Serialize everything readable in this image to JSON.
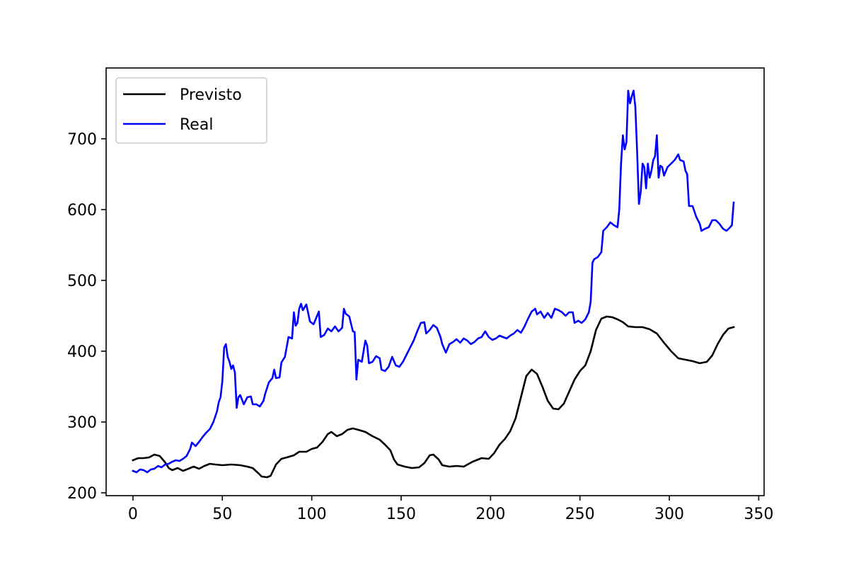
{
  "chart_data": {
    "type": "line",
    "title": "",
    "xlabel": "",
    "ylabel": "",
    "xlim": [
      -15,
      353
    ],
    "ylim": [
      196,
      800
    ],
    "xticks": [
      0,
      50,
      100,
      150,
      200,
      250,
      300,
      350
    ],
    "yticks": [
      200,
      300,
      400,
      500,
      600,
      700
    ],
    "xtick_labels": [
      "0",
      "50",
      "100",
      "150",
      "200",
      "250",
      "300",
      "350"
    ],
    "ytick_labels": [
      "200",
      "300",
      "400",
      "500",
      "600",
      "700"
    ],
    "grid": false,
    "legend_position": "top-left",
    "series": [
      {
        "name": "Previsto",
        "color": "#000000",
        "points": [
          [
            0,
            246
          ],
          [
            3,
            249
          ],
          [
            6,
            249
          ],
          [
            9,
            250
          ],
          [
            12,
            254
          ],
          [
            15,
            252
          ],
          [
            18,
            243
          ],
          [
            20,
            235
          ],
          [
            22,
            232
          ],
          [
            25,
            235
          ],
          [
            28,
            231
          ],
          [
            31,
            234
          ],
          [
            34,
            237
          ],
          [
            37,
            234
          ],
          [
            40,
            238
          ],
          [
            43,
            241
          ],
          [
            46,
            240
          ],
          [
            50,
            239
          ],
          [
            55,
            240
          ],
          [
            60,
            239
          ],
          [
            64,
            237
          ],
          [
            67,
            235
          ],
          [
            70,
            228
          ],
          [
            72,
            223
          ],
          [
            75,
            222
          ],
          [
            77,
            224
          ],
          [
            80,
            240
          ],
          [
            83,
            248
          ],
          [
            86,
            250
          ],
          [
            90,
            253
          ],
          [
            93,
            258
          ],
          [
            97,
            258
          ],
          [
            100,
            262
          ],
          [
            103,
            264
          ],
          [
            106,
            272
          ],
          [
            109,
            283
          ],
          [
            111,
            286
          ],
          [
            114,
            280
          ],
          [
            117,
            283
          ],
          [
            120,
            289
          ],
          [
            123,
            291
          ],
          [
            126,
            289
          ],
          [
            130,
            286
          ],
          [
            134,
            280
          ],
          [
            138,
            275
          ],
          [
            141,
            268
          ],
          [
            144,
            260
          ],
          [
            146,
            247
          ],
          [
            148,
            240
          ],
          [
            152,
            237
          ],
          [
            156,
            235
          ],
          [
            160,
            236
          ],
          [
            163,
            242
          ],
          [
            166,
            253
          ],
          [
            168,
            254
          ],
          [
            171,
            247
          ],
          [
            173,
            239
          ],
          [
            177,
            237
          ],
          [
            181,
            238
          ],
          [
            185,
            237
          ],
          [
            190,
            244
          ],
          [
            195,
            249
          ],
          [
            199,
            248
          ],
          [
            202,
            256
          ],
          [
            205,
            268
          ],
          [
            208,
            276
          ],
          [
            211,
            287
          ],
          [
            214,
            305
          ],
          [
            217,
            335
          ],
          [
            220,
            365
          ],
          [
            223,
            374
          ],
          [
            226,
            368
          ],
          [
            229,
            350
          ],
          [
            232,
            330
          ],
          [
            235,
            319
          ],
          [
            238,
            318
          ],
          [
            241,
            326
          ],
          [
            244,
            343
          ],
          [
            247,
            360
          ],
          [
            250,
            372
          ],
          [
            253,
            380
          ],
          [
            256,
            400
          ],
          [
            259,
            430
          ],
          [
            262,
            446
          ],
          [
            265,
            449
          ],
          [
            268,
            448
          ],
          [
            271,
            445
          ],
          [
            274,
            441
          ],
          [
            277,
            435
          ],
          [
            281,
            434
          ],
          [
            285,
            434
          ],
          [
            289,
            431
          ],
          [
            293,
            425
          ],
          [
            297,
            412
          ],
          [
            301,
            400
          ],
          [
            305,
            390
          ],
          [
            309,
            388
          ],
          [
            313,
            386
          ],
          [
            317,
            383
          ],
          [
            321,
            385
          ],
          [
            324,
            394
          ],
          [
            327,
            410
          ],
          [
            330,
            423
          ],
          [
            333,
            432
          ],
          [
            336,
            434
          ]
        ]
      },
      {
        "name": "Real",
        "color": "#0000ff",
        "points": [
          [
            0,
            231
          ],
          [
            2,
            229
          ],
          [
            4,
            233
          ],
          [
            6,
            232
          ],
          [
            8,
            229
          ],
          [
            10,
            233
          ],
          [
            12,
            234
          ],
          [
            14,
            238
          ],
          [
            16,
            236
          ],
          [
            18,
            240
          ],
          [
            20,
            241
          ],
          [
            22,
            244
          ],
          [
            24,
            246
          ],
          [
            26,
            245
          ],
          [
            28,
            248
          ],
          [
            30,
            252
          ],
          [
            32,
            262
          ],
          [
            33,
            271
          ],
          [
            35,
            266
          ],
          [
            37,
            272
          ],
          [
            39,
            279
          ],
          [
            41,
            285
          ],
          [
            43,
            290
          ],
          [
            45,
            300
          ],
          [
            47,
            315
          ],
          [
            48,
            328
          ],
          [
            49,
            335
          ],
          [
            50,
            358
          ],
          [
            51,
            405
          ],
          [
            52,
            410
          ],
          [
            53,
            392
          ],
          [
            54,
            385
          ],
          [
            55,
            375
          ],
          [
            56,
            380
          ],
          [
            57,
            370
          ],
          [
            58,
            320
          ],
          [
            59,
            335
          ],
          [
            60,
            338
          ],
          [
            62,
            325
          ],
          [
            64,
            335
          ],
          [
            66,
            336
          ],
          [
            67,
            325
          ],
          [
            69,
            325
          ],
          [
            71,
            322
          ],
          [
            73,
            330
          ],
          [
            74,
            340
          ],
          [
            76,
            356
          ],
          [
            78,
            362
          ],
          [
            79,
            374
          ],
          [
            80,
            362
          ],
          [
            82,
            363
          ],
          [
            83,
            384
          ],
          [
            85,
            392
          ],
          [
            87,
            420
          ],
          [
            89,
            418
          ],
          [
            90,
            455
          ],
          [
            91,
            436
          ],
          [
            92,
            440
          ],
          [
            93,
            460
          ],
          [
            94,
            467
          ],
          [
            95,
            458
          ],
          [
            97,
            466
          ],
          [
            99,
            442
          ],
          [
            101,
            438
          ],
          [
            103,
            450
          ],
          [
            104,
            456
          ],
          [
            105,
            420
          ],
          [
            107,
            423
          ],
          [
            109,
            432
          ],
          [
            111,
            428
          ],
          [
            113,
            435
          ],
          [
            115,
            428
          ],
          [
            117,
            433
          ],
          [
            118,
            460
          ],
          [
            119,
            453
          ],
          [
            121,
            449
          ],
          [
            123,
            428
          ],
          [
            124,
            427
          ],
          [
            125,
            360
          ],
          [
            126,
            388
          ],
          [
            128,
            385
          ],
          [
            130,
            415
          ],
          [
            131,
            408
          ],
          [
            132,
            383
          ],
          [
            134,
            385
          ],
          [
            136,
            393
          ],
          [
            138,
            390
          ],
          [
            139,
            374
          ],
          [
            141,
            372
          ],
          [
            143,
            378
          ],
          [
            145,
            392
          ],
          [
            147,
            380
          ],
          [
            149,
            378
          ],
          [
            151,
            385
          ],
          [
            153,
            395
          ],
          [
            155,
            405
          ],
          [
            157,
            415
          ],
          [
            159,
            428
          ],
          [
            161,
            440
          ],
          [
            163,
            441
          ],
          [
            164,
            425
          ],
          [
            166,
            430
          ],
          [
            168,
            437
          ],
          [
            170,
            433
          ],
          [
            172,
            420
          ],
          [
            173,
            410
          ],
          [
            175,
            398
          ],
          [
            177,
            410
          ],
          [
            179,
            413
          ],
          [
            181,
            417
          ],
          [
            183,
            412
          ],
          [
            185,
            418
          ],
          [
            187,
            415
          ],
          [
            189,
            410
          ],
          [
            191,
            413
          ],
          [
            193,
            418
          ],
          [
            195,
            420
          ],
          [
            197,
            428
          ],
          [
            199,
            420
          ],
          [
            201,
            416
          ],
          [
            203,
            418
          ],
          [
            205,
            422
          ],
          [
            207,
            420
          ],
          [
            209,
            418
          ],
          [
            211,
            422
          ],
          [
            213,
            425
          ],
          [
            215,
            430
          ],
          [
            217,
            426
          ],
          [
            219,
            435
          ],
          [
            221,
            446
          ],
          [
            223,
            456
          ],
          [
            225,
            460
          ],
          [
            226,
            452
          ],
          [
            228,
            456
          ],
          [
            230,
            447
          ],
          [
            232,
            454
          ],
          [
            234,
            447
          ],
          [
            236,
            460
          ],
          [
            238,
            458
          ],
          [
            240,
            455
          ],
          [
            242,
            450
          ],
          [
            244,
            455
          ],
          [
            246,
            455
          ],
          [
            247,
            440
          ],
          [
            249,
            443
          ],
          [
            251,
            440
          ],
          [
            253,
            445
          ],
          [
            255,
            455
          ],
          [
            256,
            470
          ],
          [
            257,
            525
          ],
          [
            258,
            530
          ],
          [
            260,
            533
          ],
          [
            262,
            540
          ],
          [
            263,
            570
          ],
          [
            265,
            575
          ],
          [
            267,
            582
          ],
          [
            269,
            578
          ],
          [
            271,
            575
          ],
          [
            272,
            600
          ],
          [
            273,
            665
          ],
          [
            274,
            705
          ],
          [
            275,
            685
          ],
          [
            276,
            695
          ],
          [
            277,
            768
          ],
          [
            278,
            750
          ],
          [
            279,
            760
          ],
          [
            280,
            768
          ],
          [
            281,
            745
          ],
          [
            282,
            680
          ],
          [
            283,
            608
          ],
          [
            284,
            625
          ],
          [
            285,
            665
          ],
          [
            286,
            660
          ],
          [
            287,
            630
          ],
          [
            288,
            665
          ],
          [
            289,
            645
          ],
          [
            290,
            655
          ],
          [
            291,
            670
          ],
          [
            292,
            675
          ],
          [
            293,
            705
          ],
          [
            294,
            645
          ],
          [
            295,
            662
          ],
          [
            296,
            660
          ],
          [
            297,
            648
          ],
          [
            299,
            660
          ],
          [
            301,
            665
          ],
          [
            303,
            670
          ],
          [
            305,
            678
          ],
          [
            306,
            670
          ],
          [
            308,
            668
          ],
          [
            309,
            655
          ],
          [
            310,
            650
          ],
          [
            311,
            605
          ],
          [
            313,
            605
          ],
          [
            315,
            590
          ],
          [
            317,
            580
          ],
          [
            318,
            570
          ],
          [
            320,
            573
          ],
          [
            322,
            575
          ],
          [
            324,
            585
          ],
          [
            326,
            585
          ],
          [
            328,
            580
          ],
          [
            330,
            573
          ],
          [
            332,
            570
          ],
          [
            334,
            575
          ],
          [
            335,
            578
          ],
          [
            336,
            610
          ]
        ]
      }
    ]
  }
}
